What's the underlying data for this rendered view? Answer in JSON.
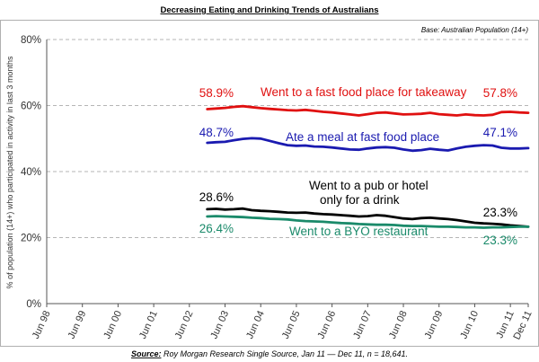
{
  "chart_data": {
    "type": "line",
    "title": "Decreasing Eating and Drinking Trends of Australians",
    "base_note": "Base: Australian Population (14+)",
    "ylabel": "% of population (14+) who participated in activity in last 3 months",
    "ylim": [
      0,
      80
    ],
    "yticks": [
      "0%",
      "20%",
      "40%",
      "60%",
      "80%"
    ],
    "y_tick_values": [
      0,
      20,
      40,
      60,
      80
    ],
    "grid": "dashed horizontal",
    "x_tick_labels": [
      "Jun 98",
      "Jun 99",
      "Jun 00",
      "Jun 01",
      "Jun 02",
      "Jun 03",
      "Jun 04",
      "Jun 05",
      "Jun 06",
      "Jun 07",
      "Jun 08",
      "Jun 09",
      "Jun 10",
      "Jun 11",
      "Dec 11"
    ],
    "x_tick_positions": [
      1998.5,
      1999.5,
      2000.5,
      2001.5,
      2002.5,
      2003.5,
      2004.5,
      2005.5,
      2006.5,
      2007.5,
      2008.5,
      2009.5,
      2010.5,
      2011.5,
      2012.0
    ],
    "xlim": [
      1998.5,
      2012.0
    ],
    "series": [
      {
        "name": "Went to a fast food place for takeaway",
        "color": "#e01010",
        "start_label": "58.9%",
        "end_label": "57.8%",
        "x": [
          2003.0,
          2003.25,
          2003.5,
          2003.75,
          2004.0,
          2004.25,
          2004.5,
          2004.75,
          2005.0,
          2005.25,
          2005.5,
          2005.75,
          2006.0,
          2006.25,
          2006.5,
          2006.75,
          2007.0,
          2007.25,
          2007.5,
          2007.75,
          2008.0,
          2008.25,
          2008.5,
          2008.75,
          2009.0,
          2009.25,
          2009.5,
          2009.75,
          2010.0,
          2010.25,
          2010.5,
          2010.75,
          2011.0,
          2011.25,
          2011.5,
          2011.75,
          2012.0
        ],
        "y": [
          58.9,
          59.1,
          59.3,
          59.6,
          59.8,
          59.5,
          59.2,
          59.0,
          58.8,
          58.6,
          58.5,
          58.7,
          58.4,
          58.1,
          57.9,
          57.6,
          57.3,
          57.0,
          57.4,
          57.8,
          57.9,
          57.6,
          57.3,
          57.4,
          57.5,
          57.8,
          57.4,
          57.2,
          57.0,
          57.3,
          57.1,
          57.0,
          57.2,
          58.0,
          58.1,
          57.9,
          57.8
        ]
      },
      {
        "name": "Ate a meal at fast food place",
        "color": "#1a1ab0",
        "start_label": "48.7%",
        "end_label": "47.1%",
        "x": [
          2003.0,
          2003.25,
          2003.5,
          2003.75,
          2004.0,
          2004.25,
          2004.5,
          2004.75,
          2005.0,
          2005.25,
          2005.5,
          2005.75,
          2006.0,
          2006.25,
          2006.5,
          2006.75,
          2007.0,
          2007.25,
          2007.5,
          2007.75,
          2008.0,
          2008.25,
          2008.5,
          2008.75,
          2009.0,
          2009.25,
          2009.5,
          2009.75,
          2010.0,
          2010.25,
          2010.5,
          2010.75,
          2011.0,
          2011.25,
          2011.5,
          2011.75,
          2012.0
        ],
        "y": [
          48.7,
          48.9,
          49.0,
          49.5,
          49.9,
          50.1,
          50.0,
          49.3,
          48.6,
          48.0,
          47.8,
          47.9,
          47.6,
          47.5,
          47.3,
          47.0,
          46.7,
          46.6,
          47.0,
          47.3,
          47.4,
          47.2,
          46.7,
          46.3,
          46.5,
          46.9,
          46.6,
          46.4,
          47.0,
          47.5,
          47.8,
          48.0,
          47.9,
          47.2,
          47.0,
          47.0,
          47.1
        ]
      },
      {
        "name": "Went to a pub or hotel only for a drink",
        "label_lines": [
          "Went to a pub or hotel",
          "only for a drink"
        ],
        "color": "#000000",
        "start_label": "28.6%",
        "end_label": "23.3%",
        "x": [
          2003.0,
          2003.25,
          2003.5,
          2003.75,
          2004.0,
          2004.25,
          2004.5,
          2004.75,
          2005.0,
          2005.25,
          2005.5,
          2005.75,
          2006.0,
          2006.25,
          2006.5,
          2006.75,
          2007.0,
          2007.25,
          2007.5,
          2007.75,
          2008.0,
          2008.25,
          2008.5,
          2008.75,
          2009.0,
          2009.25,
          2009.5,
          2009.75,
          2010.0,
          2010.25,
          2010.5,
          2010.75,
          2011.0,
          2011.25,
          2011.5,
          2011.75,
          2012.0
        ],
        "y": [
          28.6,
          28.7,
          28.5,
          28.6,
          28.8,
          28.3,
          28.1,
          28.0,
          27.8,
          27.6,
          27.5,
          27.6,
          27.3,
          27.1,
          27.0,
          26.8,
          26.6,
          26.4,
          26.5,
          26.8,
          26.6,
          26.2,
          25.8,
          25.6,
          25.9,
          26.0,
          25.8,
          25.6,
          25.3,
          24.9,
          24.5,
          24.3,
          24.2,
          24.0,
          23.7,
          23.5,
          23.3
        ]
      },
      {
        "name": "Went to a BYO restaurant",
        "color": "#1a8a6a",
        "start_label": "26.4%",
        "end_label": "23.3%",
        "x": [
          2003.0,
          2003.25,
          2003.5,
          2003.75,
          2004.0,
          2004.25,
          2004.5,
          2004.75,
          2005.0,
          2005.25,
          2005.5,
          2005.75,
          2006.0,
          2006.25,
          2006.5,
          2006.75,
          2007.0,
          2007.25,
          2007.5,
          2007.75,
          2008.0,
          2008.25,
          2008.5,
          2008.75,
          2009.0,
          2009.25,
          2009.5,
          2009.75,
          2010.0,
          2010.25,
          2010.5,
          2010.75,
          2011.0,
          2011.25,
          2011.5,
          2011.75,
          2012.0
        ],
        "y": [
          26.4,
          26.5,
          26.4,
          26.3,
          26.2,
          26.0,
          25.9,
          25.7,
          25.6,
          25.5,
          25.2,
          25.0,
          24.9,
          24.8,
          24.6,
          24.4,
          24.3,
          24.1,
          24.0,
          23.9,
          23.9,
          23.8,
          23.6,
          23.5,
          23.5,
          23.4,
          23.3,
          23.3,
          23.2,
          23.1,
          23.1,
          23.0,
          23.1,
          23.1,
          23.2,
          23.3,
          23.3
        ]
      }
    ]
  },
  "source": {
    "label": "Source:",
    "text": " Roy Morgan Research Single Source, Jan 11 — Dec 11, n = 18,641."
  }
}
